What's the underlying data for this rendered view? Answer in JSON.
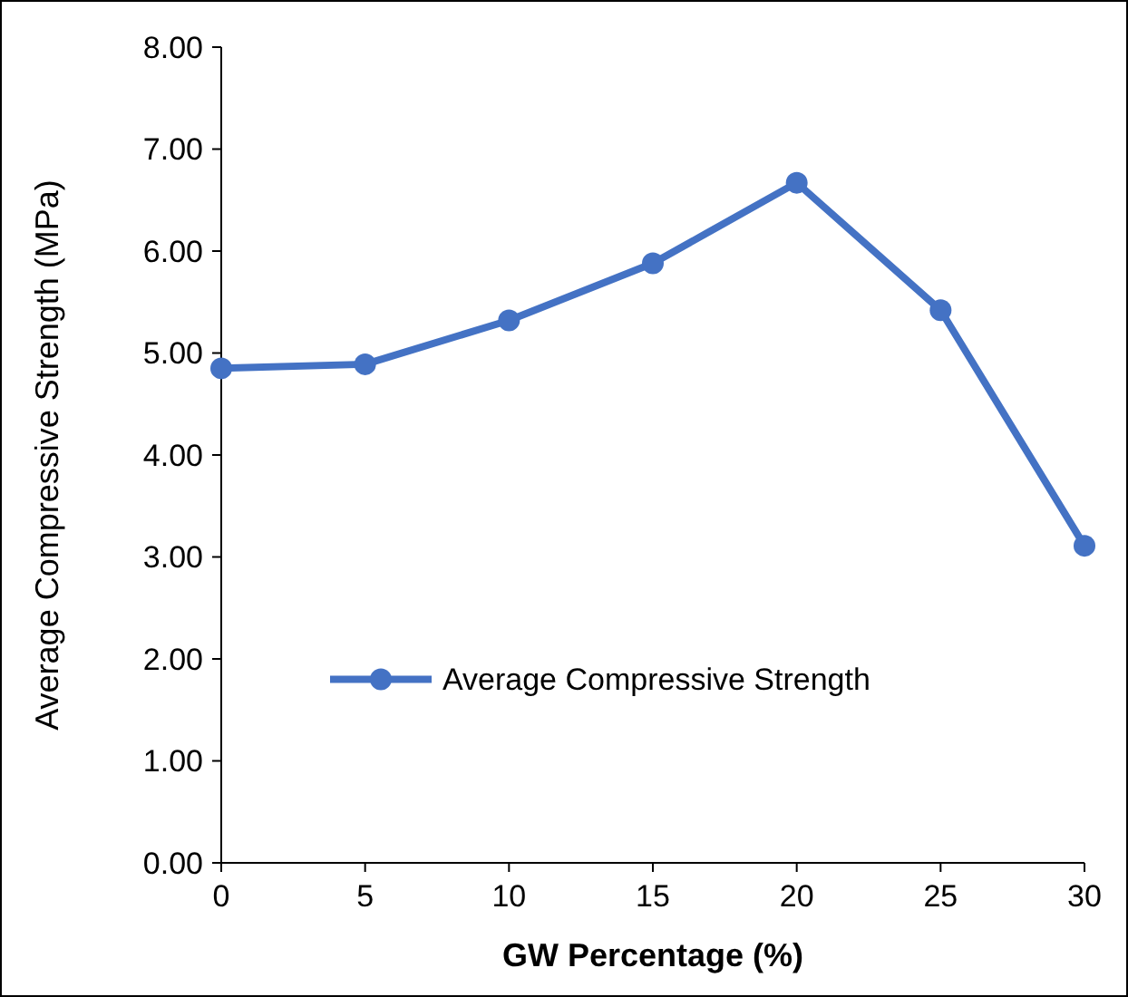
{
  "chart_data": {
    "type": "line",
    "xlabel": "GW Percentage (%)",
    "ylabel": "Average Compressive Strength (MPa)",
    "x": [
      0,
      5,
      10,
      15,
      20,
      25,
      30
    ],
    "series": [
      {
        "name": "Average Compressive Strength",
        "color": "#4472c4",
        "values": [
          4.85,
          4.89,
          5.32,
          5.88,
          6.67,
          5.42,
          3.11
        ]
      }
    ],
    "xlim": [
      0,
      30
    ],
    "xticks": [
      0,
      5,
      10,
      15,
      20,
      25,
      30
    ],
    "ylim": [
      0,
      8
    ],
    "yticks": [
      {
        "value": 0,
        "label": "0.00"
      },
      {
        "value": 1,
        "label": "1.00"
      },
      {
        "value": 2,
        "label": "2.00"
      },
      {
        "value": 3,
        "label": "3.00"
      },
      {
        "value": 4,
        "label": "4.00"
      },
      {
        "value": 5,
        "label": "5.00"
      },
      {
        "value": 6,
        "label": "6.00"
      },
      {
        "value": 7,
        "label": "7.00"
      },
      {
        "value": 8,
        "label": "8.00"
      }
    ],
    "marker": "circle",
    "line_style": "solid",
    "legend": "center",
    "grid": false
  }
}
